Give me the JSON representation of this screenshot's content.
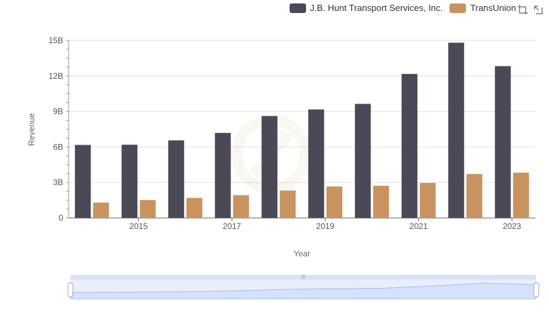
{
  "chart_data": {
    "type": "bar",
    "title": "",
    "xlabel": "Year",
    "ylabel": "Revenue",
    "x": [
      2014,
      2015,
      2016,
      2017,
      2018,
      2019,
      2020,
      2021,
      2022,
      2023
    ],
    "x_tick_labels": [
      "2015",
      "2017",
      "2019",
      "2021",
      "2023"
    ],
    "x_tick_values": [
      2015,
      2017,
      2019,
      2021,
      2023
    ],
    "ylim": [
      0,
      15000000000
    ],
    "y_ticks": [
      {
        "value": 0,
        "label": "0"
      },
      {
        "value": 3000000000,
        "label": "3B"
      },
      {
        "value": 6000000000,
        "label": "6B"
      },
      {
        "value": 9000000000,
        "label": "9B"
      },
      {
        "value": 12000000000,
        "label": "12B"
      },
      {
        "value": 15000000000,
        "label": "15B"
      }
    ],
    "grid": true,
    "legend_position": "top-right",
    "series": [
      {
        "name": "J.B. Hunt Transport Services, Inc.",
        "color": "#4a4955",
        "values": [
          6170000000,
          6190000000,
          6560000000,
          7190000000,
          8610000000,
          9170000000,
          9640000000,
          12170000000,
          14810000000,
          12830000000
        ]
      },
      {
        "name": "TransUnion",
        "color": "#c9935f",
        "values": [
          1300000000,
          1510000000,
          1700000000,
          1930000000,
          2320000000,
          2660000000,
          2720000000,
          2960000000,
          3710000000,
          3830000000
        ]
      }
    ]
  },
  "toolbox": {
    "zoom_icon": "zoom-icon",
    "restore_icon": "restore-icon"
  }
}
